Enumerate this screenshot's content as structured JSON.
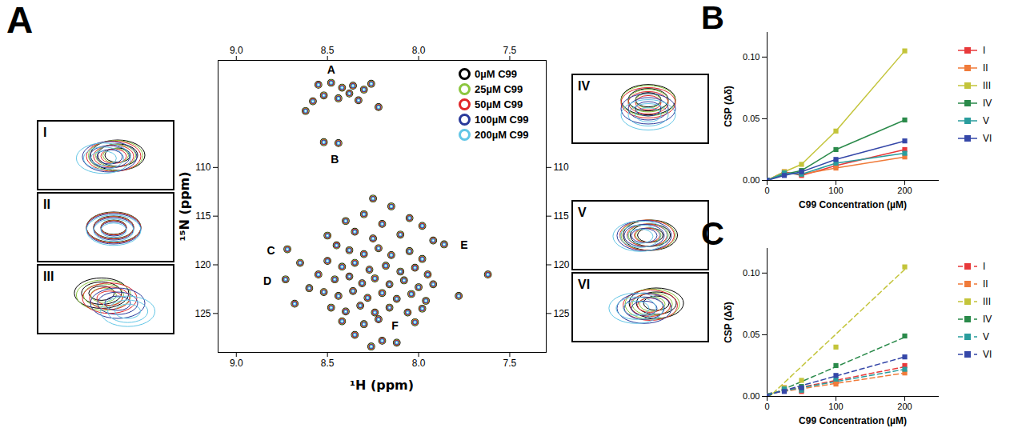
{
  "chart_data": [
    {
      "type": "nmr_spectrum",
      "panel": "A",
      "xlabel": "¹H (ppm)",
      "ylabel": "¹⁵N (ppm)",
      "xlim": [
        9.1,
        7.3
      ],
      "xticks": [
        {
          "value": 9,
          "label": "9.0"
        },
        {
          "value": 8.5,
          "label": "8.5"
        },
        {
          "value": 8,
          "label": "8.0"
        },
        {
          "value": 7.5,
          "label": "7.5"
        }
      ],
      "ylim": [
        99,
        129
      ],
      "yticks": [
        110,
        115,
        120,
        125
      ],
      "legend": "top-right",
      "series": [
        {
          "name": "0µM C99",
          "color": "#000000"
        },
        {
          "name": "25µM C99",
          "color": "#8cc63f"
        },
        {
          "name": "50µM C99",
          "color": "#e0282a"
        },
        {
          "name": "100µM C99",
          "color": "#2b3a9b"
        },
        {
          "name": "200µM C99",
          "color": "#62c6e6"
        }
      ],
      "peaks": [
        [
          8.55,
          101.5
        ],
        [
          8.48,
          101.3
        ],
        [
          8.42,
          101.8
        ],
        [
          8.36,
          101.6
        ],
        [
          8.3,
          102.0
        ],
        [
          8.52,
          102.6
        ],
        [
          8.44,
          102.9
        ],
        [
          8.38,
          102.4
        ],
        [
          8.26,
          101.4
        ],
        [
          8.58,
          103.2
        ],
        [
          8.33,
          103.1
        ],
        [
          8.62,
          104.2
        ],
        [
          8.22,
          103.8
        ],
        [
          8.52,
          107.4
        ],
        [
          8.44,
          107.5
        ],
        [
          8.25,
          113.2
        ],
        [
          8.15,
          114.0
        ],
        [
          8.3,
          114.8
        ],
        [
          8.05,
          115.2
        ],
        [
          8.4,
          115.5
        ],
        [
          8.2,
          115.8
        ],
        [
          7.98,
          116.0
        ],
        [
          8.35,
          116.6
        ],
        [
          8.1,
          116.9
        ],
        [
          8.5,
          117.0
        ],
        [
          8.25,
          117.3
        ],
        [
          7.92,
          117.5
        ],
        [
          8.72,
          118.4
        ],
        [
          8.73,
          121.5
        ],
        [
          8.65,
          119.8
        ],
        [
          8.6,
          122.4
        ],
        [
          8.68,
          124.0
        ],
        [
          7.86,
          117.9
        ],
        [
          7.62,
          121.0
        ],
        [
          7.78,
          123.2
        ],
        [
          8.45,
          118.0
        ],
        [
          8.38,
          118.5
        ],
        [
          8.3,
          118.9
        ],
        [
          8.22,
          118.3
        ],
        [
          8.15,
          119.0
        ],
        [
          8.05,
          118.6
        ],
        [
          7.98,
          119.4
        ],
        [
          8.5,
          119.6
        ],
        [
          8.42,
          120.2
        ],
        [
          8.35,
          119.8
        ],
        [
          8.27,
          120.5
        ],
        [
          8.18,
          120.1
        ],
        [
          8.1,
          120.7
        ],
        [
          8.02,
          120.3
        ],
        [
          7.95,
          121.0
        ],
        [
          8.55,
          121.0
        ],
        [
          8.46,
          121.5
        ],
        [
          8.38,
          121.2
        ],
        [
          8.31,
          121.9
        ],
        [
          8.24,
          121.4
        ],
        [
          8.16,
          122.0
        ],
        [
          8.08,
          121.6
        ],
        [
          8.0,
          122.3
        ],
        [
          7.92,
          122.0
        ],
        [
          8.52,
          122.8
        ],
        [
          8.44,
          123.2
        ],
        [
          8.36,
          122.7
        ],
        [
          8.28,
          123.4
        ],
        [
          8.2,
          122.9
        ],
        [
          8.12,
          123.5
        ],
        [
          8.04,
          123.0
        ],
        [
          7.96,
          123.7
        ],
        [
          8.48,
          124.4
        ],
        [
          8.4,
          124.8
        ],
        [
          8.32,
          124.2
        ],
        [
          8.24,
          124.9
        ],
        [
          8.16,
          124.4
        ],
        [
          8.06,
          124.9
        ],
        [
          7.98,
          124.5
        ],
        [
          8.42,
          125.8
        ],
        [
          8.3,
          126.1
        ],
        [
          8.22,
          125.6
        ],
        [
          8.02,
          125.9
        ],
        [
          8.35,
          127.2
        ],
        [
          8.2,
          127.8
        ],
        [
          8.12,
          128.0
        ],
        [
          8.26,
          128.4
        ]
      ],
      "peak_labels": [
        {
          "text": "A",
          "x": 8.48,
          "y": 100.0
        },
        {
          "text": "B",
          "x": 8.46,
          "y": 109.2
        },
        {
          "text": "C",
          "x": 8.81,
          "y": 118.6
        },
        {
          "text": "D",
          "x": 8.83,
          "y": 121.7
        },
        {
          "text": "E",
          "x": 7.75,
          "y": 118.0
        },
        {
          "text": "F",
          "x": 8.13,
          "y": 126.3
        }
      ],
      "insets": [
        {
          "label": "I",
          "shifts": [
            [
              0.1,
              0
            ],
            [
              0.05,
              0.02
            ],
            [
              0,
              0.05
            ],
            [
              -0.1,
              0.08
            ],
            [
              -0.25,
              0.15
            ]
          ]
        },
        {
          "label": "II",
          "shifts": [
            [
              0,
              0
            ],
            [
              0,
              0.02
            ],
            [
              0,
              0.03
            ],
            [
              0,
              0.08
            ],
            [
              0,
              0.15
            ]
          ]
        },
        {
          "label": "III",
          "shifts": [
            [
              -0.3,
              -0.3
            ],
            [
              -0.25,
              -0.2
            ],
            [
              -0.1,
              -0.05
            ],
            [
              0.1,
              0.2
            ],
            [
              0.35,
              0.6
            ]
          ]
        },
        {
          "label": "IV",
          "shifts": [
            [
              0,
              -0.45
            ],
            [
              0,
              -0.4
            ],
            [
              0,
              -0.3
            ],
            [
              0,
              0
            ],
            [
              0,
              0.3
            ]
          ]
        },
        {
          "label": "V",
          "shifts": [
            [
              0.05,
              0
            ],
            [
              0,
              0
            ],
            [
              -0.03,
              0
            ],
            [
              -0.1,
              0.02
            ],
            [
              -0.2,
              0.05
            ]
          ]
        },
        {
          "label": "VI",
          "shifts": [
            [
              0.2,
              -0.2
            ],
            [
              0.1,
              -0.15
            ],
            [
              0.05,
              -0.1
            ],
            [
              -0.1,
              0.05
            ],
            [
              -0.3,
              0.05
            ]
          ]
        }
      ]
    },
    {
      "type": "line",
      "panel": "B",
      "xlabel": "C99 Concentration (µM)",
      "ylabel": "CSP (Δδ)",
      "x": [
        0,
        25,
        50,
        100,
        200
      ],
      "xlim": [
        0,
        250
      ],
      "xticks": [
        0,
        100,
        200
      ],
      "ylim": [
        0,
        0.12
      ],
      "yticks": [
        {
          "value": 0,
          "label": "0.00"
        },
        {
          "value": 0.05,
          "label": "0.05"
        },
        {
          "value": 0.1,
          "label": "0.10"
        }
      ],
      "marker": "square",
      "line_style": "solid",
      "legend": "right",
      "series": [
        {
          "name": "I",
          "color": "#e8393a",
          "values": [
            0,
            0.007,
            0.004,
            0.012,
            0.025
          ]
        },
        {
          "name": "II",
          "color": "#f07b3a",
          "values": [
            0,
            0.006,
            0.005,
            0.01,
            0.019
          ]
        },
        {
          "name": "III",
          "color": "#c3c43a",
          "values": [
            0,
            0.007,
            0.013,
            0.04,
            0.105
          ]
        },
        {
          "name": "IV",
          "color": "#2a8a4a",
          "values": [
            0,
            0.005,
            0.008,
            0.025,
            0.049
          ]
        },
        {
          "name": "V",
          "color": "#2a9d9d",
          "values": [
            0,
            0.006,
            0.005,
            0.014,
            0.022
          ]
        },
        {
          "name": "VI",
          "color": "#3547a8",
          "values": [
            0,
            0.004,
            0.007,
            0.017,
            0.032
          ]
        }
      ]
    },
    {
      "type": "scatter",
      "panel": "C",
      "xlabel": "C99 Concentration (µM)",
      "ylabel": "CSP (Δδ)",
      "x": [
        0,
        25,
        50,
        100,
        200
      ],
      "xlim": [
        0,
        250
      ],
      "xticks": [
        0,
        100,
        200
      ],
      "ylim": [
        0,
        0.12
      ],
      "yticks": [
        {
          "value": 0,
          "label": "0.00"
        },
        {
          "value": 0.05,
          "label": "0.05"
        },
        {
          "value": 0.1,
          "label": "0.10"
        }
      ],
      "marker": "square",
      "line_style": "dashed",
      "legend": "right",
      "fit_x": [
        0,
        200
      ],
      "series": [
        {
          "name": "I",
          "color": "#e8393a",
          "values": [
            0,
            0.007,
            0.004,
            0.012,
            0.025
          ],
          "fit": [
            0.002,
            0.024
          ]
        },
        {
          "name": "II",
          "color": "#f07b3a",
          "values": [
            0,
            0.006,
            0.005,
            0.01,
            0.019
          ],
          "fit": [
            0.002,
            0.019
          ]
        },
        {
          "name": "III",
          "color": "#c3c43a",
          "values": [
            0,
            0.007,
            0.013,
            0.04,
            0.105
          ],
          "fit": [
            -0.002,
            0.103
          ]
        },
        {
          "name": "IV",
          "color": "#2a8a4a",
          "values": [
            0,
            0.005,
            0.008,
            0.025,
            0.049
          ],
          "fit": [
            0.0,
            0.048
          ]
        },
        {
          "name": "V",
          "color": "#2a9d9d",
          "values": [
            0,
            0.006,
            0.005,
            0.014,
            0.022
          ],
          "fit": [
            0.002,
            0.022
          ]
        },
        {
          "name": "VI",
          "color": "#3547a8",
          "values": [
            0,
            0.004,
            0.007,
            0.017,
            0.032
          ],
          "fit": [
            0.001,
            0.032
          ]
        }
      ]
    }
  ]
}
